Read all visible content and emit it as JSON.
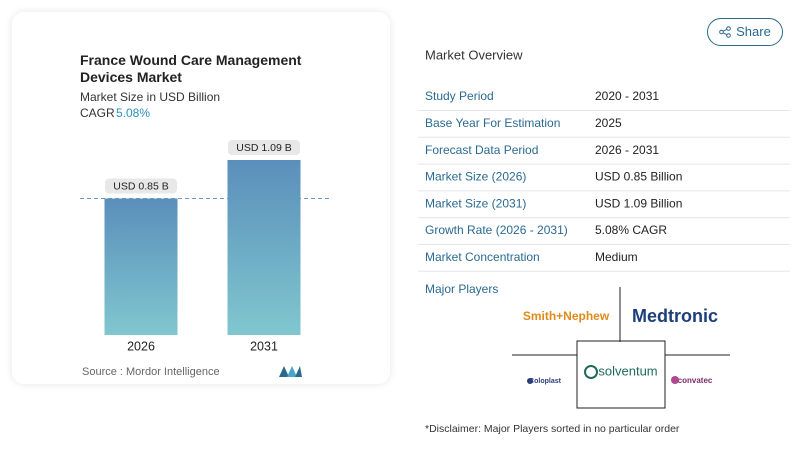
{
  "chart_data": {
    "type": "bar",
    "title": "France Wound Care Management Devices Market",
    "subtitle": "Market Size in USD Billion",
    "cagr_label": "CAGR",
    "cagr_value": "5.08%",
    "categories": [
      "2026",
      "2031"
    ],
    "values": [
      0.85,
      1.09
    ],
    "value_labels": [
      "USD 0.85 B",
      "USD 1.09 B"
    ],
    "source": "Source : Mordor Intelligence"
  },
  "share": "Share",
  "overview": {
    "title": "Market Overview",
    "rows": [
      [
        "Study Period",
        "2020 - 2031"
      ],
      [
        "Base Year For Estimation",
        "2025"
      ],
      [
        "Forecast Data Period",
        "2026 - 2031"
      ],
      [
        "Market Size (2026)",
        "USD 0.85 Billion"
      ],
      [
        "Market Size (2031)",
        "USD 1.09 Billion"
      ],
      [
        "Growth Rate (2026 - 2031)",
        "5.08% CAGR"
      ],
      [
        "Market Concentration",
        "Medium"
      ]
    ],
    "players_title": "Major Players",
    "players": [
      "Smith+Nephew",
      "Medtronic",
      "solventum",
      "Coloplast",
      "convatec"
    ],
    "disclaimer": "*Disclaimer: Major Players sorted in no particular order"
  }
}
